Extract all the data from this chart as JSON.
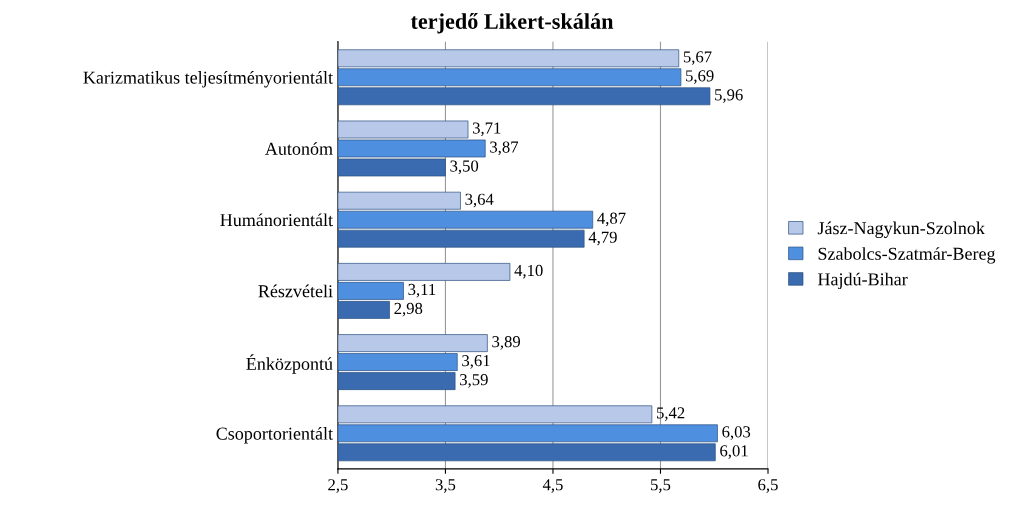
{
  "chart_data": {
    "type": "bar",
    "orientation": "horizontal",
    "title": "terjedő Likert-skálán",
    "categories": [
      "Karizmatikus teljesítményorientált",
      "Autonóm",
      "Humánorientált",
      "Részvételi",
      "Énközpontú",
      "Csoportorientált"
    ],
    "series": [
      {
        "name": "Jász-Nagykun-Szolnok",
        "color": "#b8c8e8",
        "values": [
          5.67,
          3.71,
          3.64,
          4.1,
          3.89,
          5.42
        ],
        "value_labels": [
          "5,67",
          "3,71",
          "3,64",
          "4,10",
          "3,89",
          "5,42"
        ]
      },
      {
        "name": "Szabolcs-Szatmár-Bereg",
        "color": "#4f8fe0",
        "values": [
          5.69,
          3.87,
          4.87,
          3.11,
          3.61,
          6.03
        ],
        "value_labels": [
          "5,69",
          "3,87",
          "4,87",
          "3,11",
          "3,61",
          "6,03"
        ]
      },
      {
        "name": "Hajdú-Bihar",
        "color": "#3a6bb0",
        "values": [
          5.96,
          3.5,
          4.79,
          2.98,
          3.59,
          6.01
        ],
        "value_labels": [
          "5,96",
          "3,50",
          "4,79",
          "2,98",
          "3,59",
          "6,01"
        ]
      }
    ],
    "xlim": [
      2.5,
      6.5
    ],
    "xticks": [
      {
        "value": 2.5,
        "label": "2,5"
      },
      {
        "value": 3.5,
        "label": "3,5"
      },
      {
        "value": 4.5,
        "label": "4,5"
      },
      {
        "value": 5.5,
        "label": "5,5"
      },
      {
        "value": 6.5,
        "label": "6,5"
      }
    ],
    "grid": "x",
    "legend": "right"
  }
}
